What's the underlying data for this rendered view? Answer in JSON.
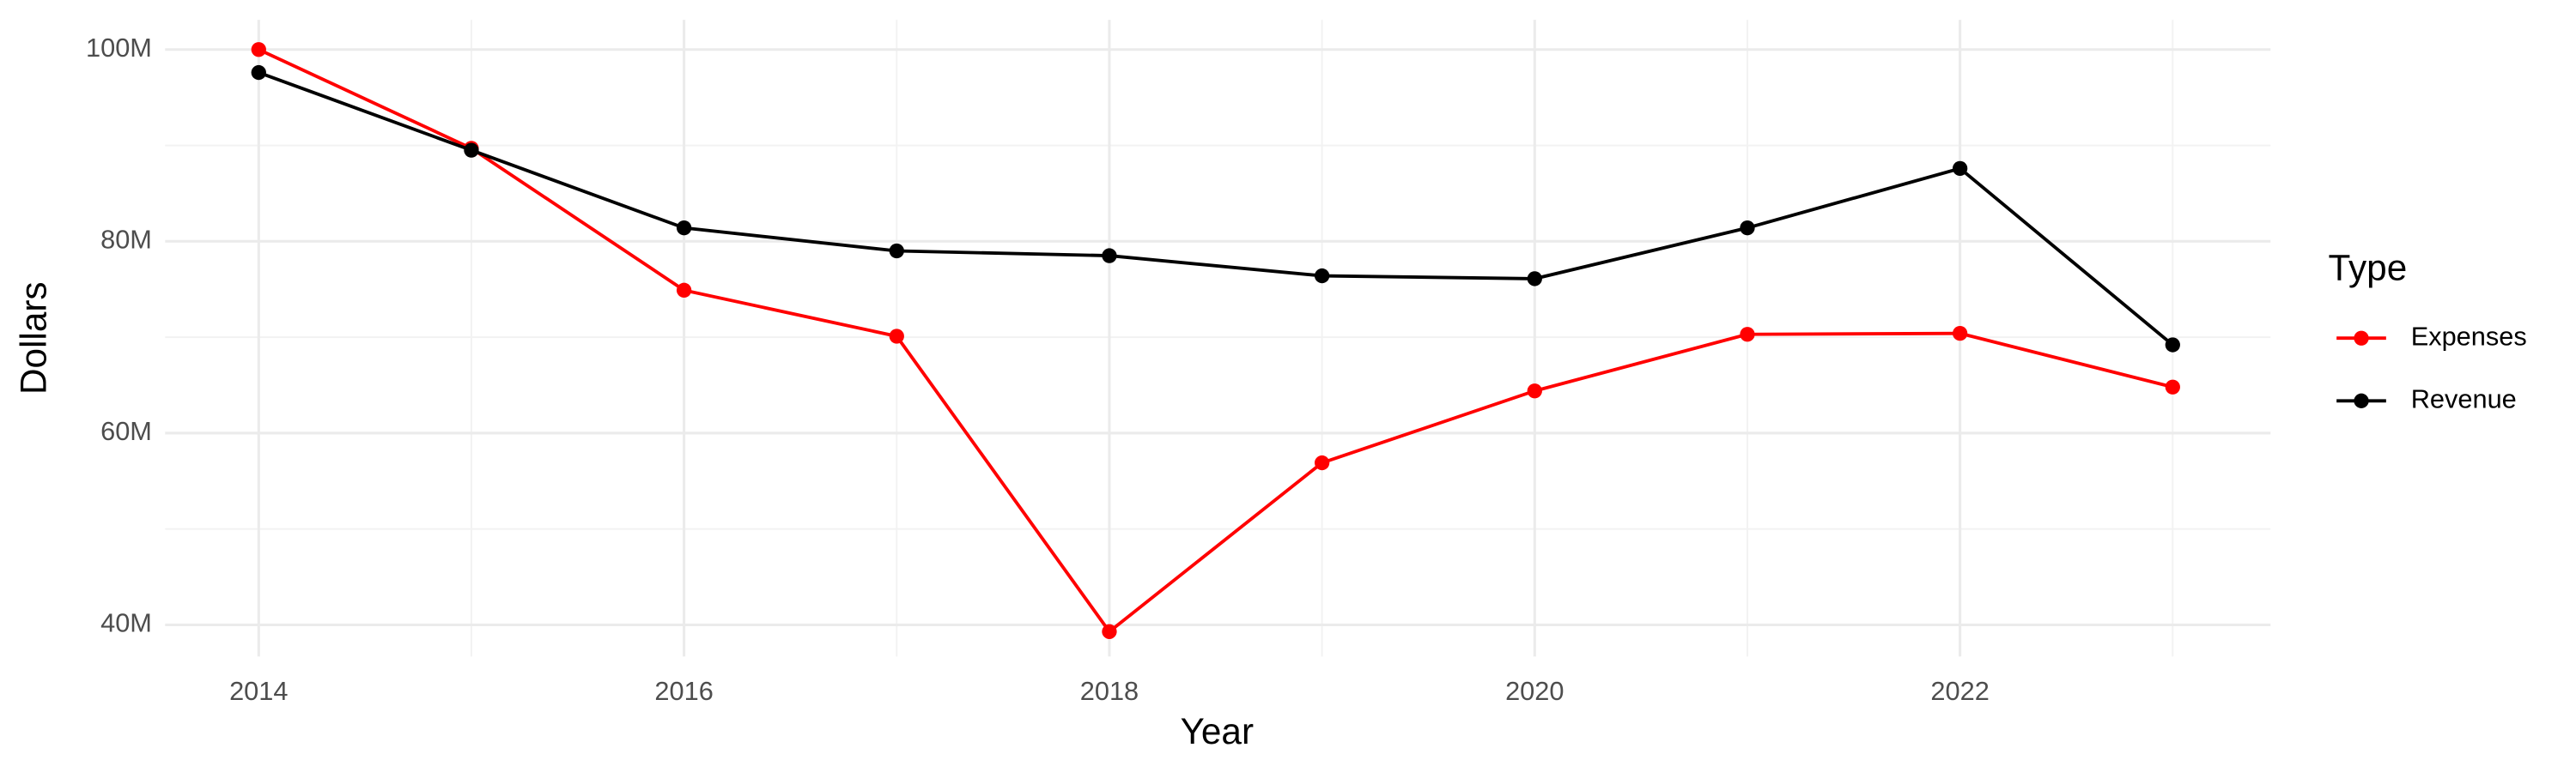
{
  "chart_data": {
    "type": "line",
    "x_label": "Year",
    "y_label": "Dollars",
    "legend_title": "Type",
    "legend": "right",
    "x": [
      2014,
      2015,
      2016,
      2017,
      2018,
      2019,
      2020,
      2021,
      2022,
      2023
    ],
    "series": [
      {
        "name": "Expenses",
        "color": "#ff0000",
        "values": [
          100000000,
          89700000,
          74900000,
          70100000,
          39300000,
          56900000,
          64400000,
          70300000,
          70400000,
          64800000
        ]
      },
      {
        "name": "Revenue",
        "color": "#000000",
        "values": [
          97600000,
          89500000,
          81400000,
          79000000,
          78500000,
          76400000,
          76100000,
          81400000,
          87600000,
          69200000
        ]
      }
    ],
    "xlim": [
      2013.56,
      2023.46
    ],
    "xticks": [
      2014,
      2016,
      2018,
      2020,
      2022
    ],
    "ylim": [
      36700000,
      103100000
    ],
    "yticks": [
      {
        "value": 40000000,
        "label": "40M"
      },
      {
        "value": 60000000,
        "label": "60M"
      },
      {
        "value": 80000000,
        "label": "80M"
      },
      {
        "value": 100000000,
        "label": "100M"
      }
    ],
    "grid": true
  }
}
